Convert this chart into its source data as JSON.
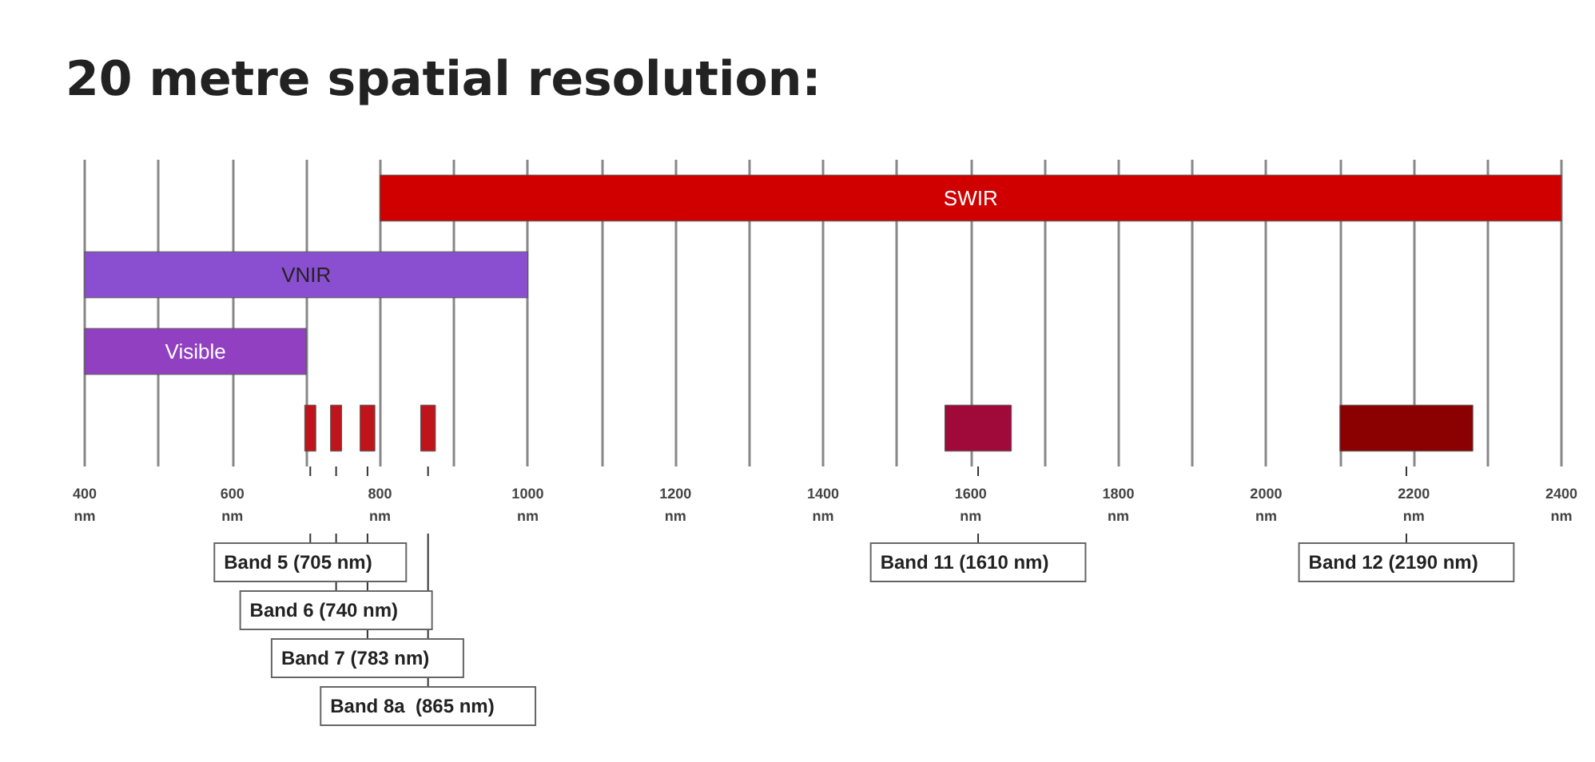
{
  "chart_data": {
    "type": "bar",
    "orientation": "horizontal",
    "title": "20 metre spatial resolution:",
    "categories": [
      null,
      null,
      null,
      null
    ],
    "series": [
      {
        "name": "SWIR",
        "color": "#d00000",
        "values": [
          1600,
          null,
          null,
          null
        ],
        "base": [
          800,
          null,
          null,
          null
        ]
      },
      {
        "name": "VNIR",
        "color": "#8a4fd0",
        "values": [
          null,
          600,
          null,
          null
        ],
        "base": [
          null,
          400,
          null,
          null
        ]
      },
      {
        "name": "Visible",
        "color": "#9040c0",
        "values": [
          null,
          null,
          300,
          null
        ],
        "base": [
          null,
          null,
          400,
          null
        ]
      },
      {
        "color": "#c0141c",
        "values": [
          null,
          null,
          null,
          15
        ],
        "base": [
          null,
          null,
          null,
          698
        ]
      },
      {
        "color": "#c0141c",
        "values": [
          null,
          null,
          null,
          15
        ],
        "base": [
          null,
          null,
          null,
          733
        ]
      },
      {
        "color": "#c0141c",
        "values": [
          null,
          null,
          null,
          20
        ],
        "base": [
          null,
          null,
          null,
          773
        ]
      },
      {
        "color": "#c0141c",
        "values": [
          null,
          null,
          null,
          20
        ],
        "base": [
          null,
          null,
          null,
          855
        ]
      },
      {
        "color": "#a00a3a",
        "values": [
          null,
          null,
          null,
          90
        ],
        "base": [
          null,
          null,
          null,
          1565
        ]
      },
      {
        "color": "#8b0000",
        "values": [
          null,
          null,
          null,
          180
        ],
        "base": [
          null,
          null,
          null,
          2100
        ]
      }
    ],
    "xlim": [
      400,
      2400
    ],
    "xticks": [
      {
        "value": 400,
        "label": "400 nm"
      },
      {
        "value": 500,
        "label": null
      },
      {
        "value": 600,
        "label": "600 nm"
      },
      {
        "value": 700,
        "label": null
      },
      {
        "value": 800,
        "label": "800 nm"
      },
      {
        "value": 900,
        "label": null
      },
      {
        "value": 1000,
        "label": "1000 nm"
      },
      {
        "value": 1100,
        "label": null
      },
      {
        "value": 1200,
        "label": "1200 nm"
      },
      {
        "value": 1300,
        "label": null
      },
      {
        "value": 1400,
        "label": "1400 nm"
      },
      {
        "value": 1500,
        "label": null
      },
      {
        "value": 1600,
        "label": "1600 nm"
      },
      {
        "value": 1700,
        "label": null
      },
      {
        "value": 1800,
        "label": "1800 nm"
      },
      {
        "value": 1900,
        "label": null
      },
      {
        "value": 2000,
        "label": "2000 nm"
      },
      {
        "value": 2100,
        "label": null
      },
      {
        "value": 2200,
        "label": "2200 nm"
      },
      {
        "value": 2300,
        "label": null
      },
      {
        "value": 2400,
        "label": "2400 nm"
      }
    ],
    "grid": "x",
    "legend": false,
    "annotations": [
      "Band 5 (705 nm)",
      "Band 6 (740 nm)",
      "Band 7 (783 nm)",
      "Band 8a  (865 nm)",
      "Band 11 (1610 nm)",
      "Band 12 (2190 nm)"
    ]
  }
}
